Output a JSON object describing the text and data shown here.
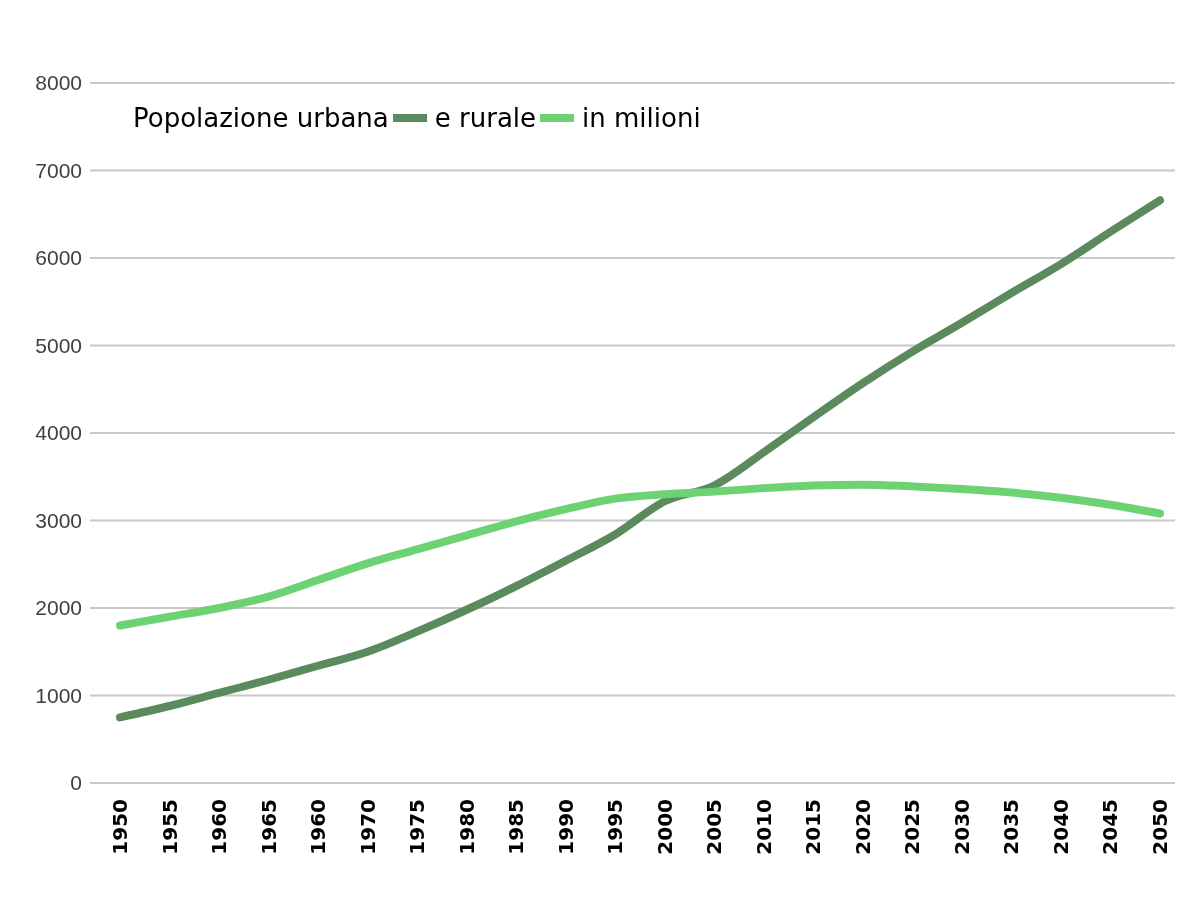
{
  "chart_data": {
    "type": "line",
    "legend_title": "Popolazione urbana",
    "categories": [
      "1950",
      "1955",
      "1960",
      "1965",
      "1960",
      "1970",
      "1975",
      "1980",
      "1985",
      "1990",
      "1995",
      "2000",
      "2005",
      "2010",
      "2015",
      "2020",
      "2025",
      "2030",
      "2035",
      "2040",
      "2045",
      "2050"
    ],
    "series": [
      {
        "name": "e rurale",
        "color": "#5a8a5e",
        "values": [
          750,
          880,
          1030,
          1180,
          1340,
          1500,
          1730,
          1980,
          2250,
          2540,
          2840,
          3220,
          3400,
          3780,
          4180,
          4570,
          4930,
          5260,
          5600,
          5930,
          6300,
          6660
        ]
      },
      {
        "name": "in milioni",
        "color": "#6cd274",
        "values": [
          1800,
          1900,
          2000,
          2130,
          2320,
          2510,
          2670,
          2830,
          2990,
          3130,
          3250,
          3300,
          3330,
          3370,
          3400,
          3410,
          3390,
          3360,
          3320,
          3260,
          3180,
          3080
        ]
      }
    ],
    "ylim": [
      0,
      8000
    ],
    "yticks": [
      0,
      1000,
      2000,
      3000,
      4000,
      5000,
      6000,
      7000,
      8000
    ],
    "grid": "y",
    "legend": "top left",
    "marker": "none",
    "line_style": "solid"
  }
}
